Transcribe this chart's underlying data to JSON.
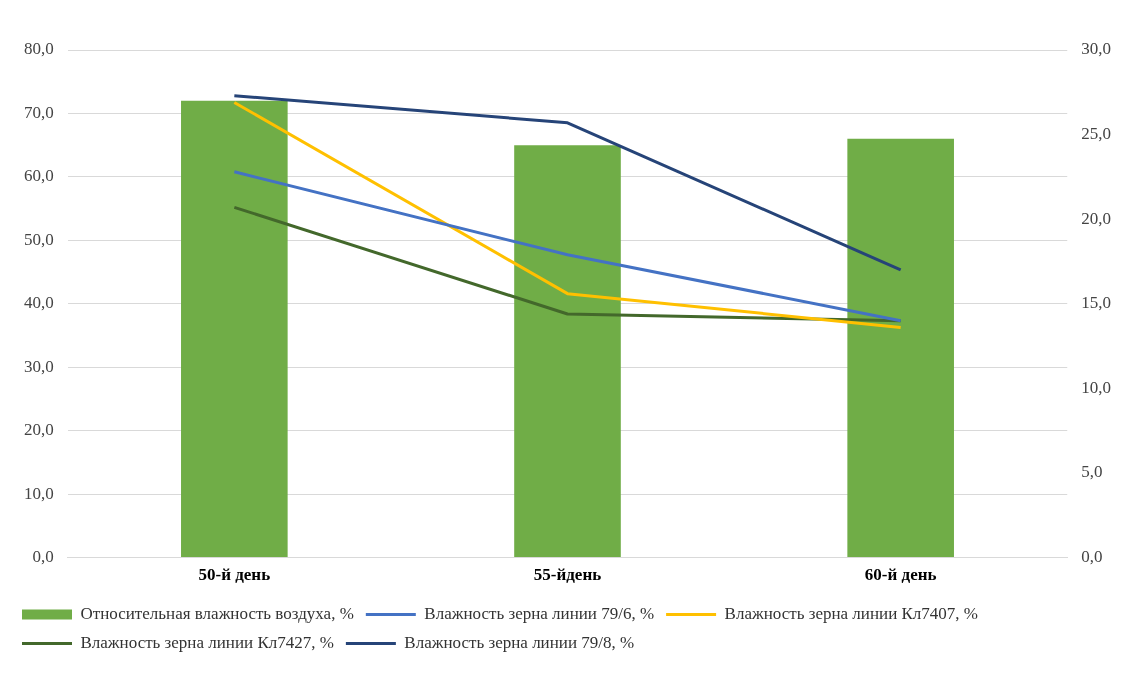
{
  "chart_data": {
    "type": "bar",
    "categories": [
      "50-й день",
      "55-йдень",
      "60-й день"
    ],
    "series": [
      {
        "name": "Относительная влажность воздуха, %",
        "color": "#70ad47",
        "values": [
          72.0,
          65.0,
          66.0
        ]
      },
      {
        "name": "Влажность зерна линии 79/6, %",
        "type": "line",
        "axis": "y2",
        "color": "#4472c4",
        "values": [
          22.8,
          17.9,
          14.0
        ]
      },
      {
        "name": "Влажность зерна линии Кл7407, %",
        "type": "line",
        "axis": "y2",
        "color": "#ffc000",
        "values": [
          26.9,
          15.6,
          13.6
        ]
      },
      {
        "name": "Влажность зерна линии Кл7427, %",
        "type": "line",
        "axis": "y2",
        "color": "#43682b",
        "values": [
          20.7,
          14.4,
          14.0
        ]
      },
      {
        "name": "Влажность зерна линии 79/8, %",
        "type": "line",
        "axis": "y2",
        "color": "#264478",
        "values": [
          27.3,
          25.7,
          17.0
        ]
      }
    ],
    "ylim": [
      0,
      80
    ],
    "yticks": [
      {
        "value": 0,
        "label": "0,0"
      },
      {
        "value": 10,
        "label": "10,0"
      },
      {
        "value": 20,
        "label": "20,0"
      },
      {
        "value": 30,
        "label": "30,0"
      },
      {
        "value": 40,
        "label": "40,0"
      },
      {
        "value": 50,
        "label": "50,0"
      },
      {
        "value": 60,
        "label": "60,0"
      },
      {
        "value": 70,
        "label": "70,0"
      },
      {
        "value": 80,
        "label": "80,0"
      }
    ],
    "y2lim": [
      0,
      30
    ],
    "y2ticks": [
      {
        "value": 0,
        "label": "0,0"
      },
      {
        "value": 5,
        "label": "5,0"
      },
      {
        "value": 10,
        "label": "10,0"
      },
      {
        "value": 15,
        "label": "15,0"
      },
      {
        "value": 20,
        "label": "20,0"
      },
      {
        "value": 25,
        "label": "25,0"
      },
      {
        "value": 30,
        "label": "30,0"
      }
    ],
    "grid": "y",
    "legend": "bottom",
    "marker": "none",
    "line_style": "solid"
  }
}
